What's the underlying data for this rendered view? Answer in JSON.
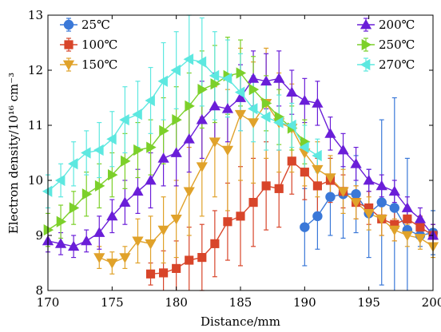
{
  "chart_data": {
    "type": "scatter",
    "title": "",
    "xlabel": "Distance/mm",
    "ylabel": "Electron density/10¹⁶ cm⁻³",
    "xlim": [
      170,
      200
    ],
    "ylim": [
      8,
      13
    ],
    "xticks": [
      "170",
      "175",
      "180",
      "185",
      "190",
      "195",
      "200"
    ],
    "yticks": [
      "8",
      "9",
      "10",
      "11",
      "12",
      "13"
    ],
    "grid": false,
    "legend_placement": "top (two columns)",
    "series": [
      {
        "name": "25℃",
        "color": "#3a78d8",
        "marker": "circle",
        "x": [
          190,
          191,
          192,
          193,
          194,
          195,
          196,
          197,
          198,
          199,
          200
        ],
        "y": [
          9.15,
          9.35,
          9.7,
          9.75,
          9.75,
          9.4,
          9.6,
          9.5,
          9.1,
          9.0,
          9.05
        ],
        "err": [
          0.7,
          0.6,
          0.7,
          0.8,
          0.7,
          0.8,
          1.5,
          2.0,
          1.3,
          0.2,
          0.4
        ]
      },
      {
        "name": "100℃",
        "color": "#d8452a",
        "marker": "square",
        "x": [
          178,
          179,
          180,
          181,
          182,
          183,
          184,
          185,
          186,
          187,
          188,
          189,
          190,
          191,
          192,
          193,
          194,
          195,
          196,
          197,
          198,
          199,
          200
        ],
        "y": [
          8.3,
          8.32,
          8.4,
          8.55,
          8.6,
          8.85,
          9.25,
          9.35,
          9.6,
          9.9,
          9.85,
          10.35,
          10.15,
          9.9,
          10.0,
          9.8,
          9.6,
          9.5,
          9.3,
          9.2,
          9.3,
          9.15,
          9.0
        ],
        "err": [
          0.2,
          0.4,
          0.5,
          0.6,
          0.6,
          0.6,
          0.7,
          0.9,
          0.8,
          0.8,
          0.7,
          0.6,
          0.5,
          0.5,
          0.4,
          0.3,
          0.3,
          0.3,
          0.3,
          0.3,
          0.2,
          0.2,
          0.2
        ]
      },
      {
        "name": "150℃",
        "color": "#e0a22a",
        "marker": "triangle-down",
        "x": [
          174,
          175,
          176,
          177,
          178,
          179,
          180,
          181,
          182,
          183,
          184,
          185,
          186,
          187,
          188,
          189,
          190,
          191,
          192,
          193,
          194,
          195,
          196,
          197,
          198,
          199,
          200
        ],
        "y": [
          8.6,
          8.5,
          8.6,
          8.9,
          8.85,
          9.1,
          9.3,
          9.8,
          10.25,
          10.7,
          10.55,
          11.2,
          11.05,
          11.4,
          11.05,
          10.95,
          10.5,
          10.2,
          10.05,
          9.8,
          9.6,
          9.4,
          9.3,
          9.1,
          9.0,
          8.95,
          8.8
        ],
        "err": [
          0.2,
          0.2,
          0.2,
          0.4,
          0.5,
          0.6,
          0.7,
          0.8,
          0.9,
          1.0,
          1.1,
          1.2,
          1.1,
          1.0,
          0.9,
          0.8,
          0.6,
          0.5,
          0.4,
          0.4,
          0.3,
          0.3,
          0.3,
          0.2,
          0.2,
          0.2,
          0.2
        ]
      },
      {
        "name": "200℃",
        "color": "#6a1ed8",
        "marker": "triangle-up",
        "x": [
          170,
          171,
          172,
          173,
          174,
          175,
          176,
          177,
          178,
          179,
          180,
          181,
          182,
          183,
          184,
          185,
          186,
          187,
          188,
          189,
          190,
          191,
          192,
          193,
          194,
          195,
          196,
          197,
          198,
          199,
          200
        ],
        "y": [
          8.9,
          8.85,
          8.8,
          8.9,
          9.05,
          9.35,
          9.6,
          9.8,
          10.0,
          10.4,
          10.5,
          10.75,
          11.1,
          11.35,
          11.3,
          11.5,
          11.85,
          11.8,
          11.85,
          11.6,
          11.45,
          11.4,
          10.85,
          10.55,
          10.3,
          10.0,
          9.9,
          9.8,
          9.5,
          9.3,
          9.0
        ],
        "err": [
          0.2,
          0.2,
          0.2,
          0.2,
          0.3,
          0.3,
          0.4,
          0.4,
          0.5,
          0.5,
          0.6,
          0.6,
          0.7,
          0.6,
          0.6,
          0.6,
          0.5,
          0.5,
          0.5,
          0.4,
          0.4,
          0.4,
          0.3,
          0.3,
          0.3,
          0.2,
          0.2,
          0.2,
          0.2,
          0.2,
          0.2
        ]
      },
      {
        "name": "250℃",
        "color": "#7cd02a",
        "marker": "triangle-right",
        "x": [
          170,
          171,
          172,
          173,
          174,
          175,
          176,
          177,
          178,
          179,
          180,
          181,
          182,
          183,
          184,
          185,
          186,
          187,
          188,
          189,
          190
        ],
        "y": [
          9.1,
          9.25,
          9.5,
          9.75,
          9.9,
          10.1,
          10.35,
          10.55,
          10.6,
          10.9,
          11.1,
          11.35,
          11.65,
          11.75,
          11.9,
          11.95,
          11.65,
          11.4,
          11.15,
          10.95,
          10.7
        ],
        "err": [
          0.3,
          0.3,
          0.3,
          0.4,
          0.4,
          0.4,
          0.5,
          0.5,
          0.5,
          0.6,
          0.6,
          0.6,
          0.7,
          0.7,
          0.7,
          0.6,
          0.6,
          0.5,
          0.5,
          0.4,
          0.4
        ]
      },
      {
        "name": "270℃",
        "color": "#5de8e0",
        "marker": "triangle-left",
        "x": [
          170,
          171,
          172,
          173,
          174,
          175,
          176,
          177,
          178,
          179,
          180,
          181,
          182,
          183,
          184,
          185,
          186,
          187,
          188,
          189,
          190,
          191
        ],
        "y": [
          9.8,
          10.0,
          10.3,
          10.5,
          10.55,
          10.75,
          11.1,
          11.2,
          11.45,
          11.8,
          12.0,
          12.2,
          12.15,
          11.9,
          11.85,
          11.6,
          11.3,
          11.15,
          11.05,
          11.0,
          10.6,
          10.45
        ],
        "err": [
          0.3,
          0.3,
          0.4,
          0.4,
          0.5,
          0.5,
          0.6,
          0.6,
          0.6,
          0.7,
          0.7,
          0.8,
          0.8,
          0.8,
          0.7,
          0.7,
          0.6,
          0.6,
          0.5,
          0.4,
          0.4,
          0.3
        ]
      }
    ]
  }
}
